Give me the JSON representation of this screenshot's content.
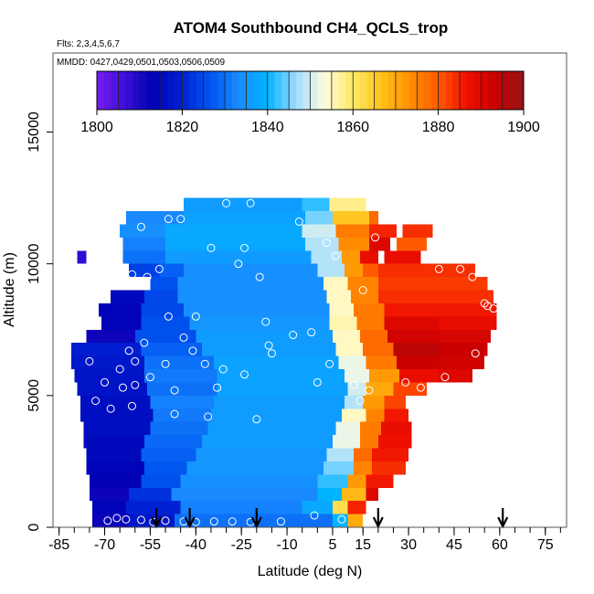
{
  "chart_data": {
    "type": "heatmap",
    "title": "ATOM4 Southbound CH4_QCLS_trop",
    "flights_text": "Flts: 2,3,4,5,6,7",
    "dates_text": "MMDD: 0427,0429,0501,0503,0506,0509",
    "xlabel": "Latitude (deg N)",
    "ylabel": "Altitude (m)",
    "xlim": [
      -87,
      82
    ],
    "ylim": [
      0,
      18000
    ],
    "x_ticks": [
      -85,
      -70,
      -55,
      -40,
      -25,
      -10,
      5,
      15,
      30,
      45,
      60,
      75
    ],
    "x_tick_labels": [
      "-85",
      "-70",
      "-55",
      "-40",
      "-25",
      "-10",
      "5",
      "15",
      "30",
      "45",
      "60",
      "75"
    ],
    "y_ticks": [
      0,
      5000,
      10000,
      15000
    ],
    "y_tick_labels": [
      "0",
      "5000",
      "10000",
      "15000"
    ],
    "colorbar": {
      "min": 1800,
      "max": 1900,
      "tick_values": [
        1800,
        1820,
        1840,
        1860,
        1880,
        1900
      ],
      "tick_labels": [
        "1800",
        "1820",
        "1840",
        "1860",
        "1880",
        "1900"
      ],
      "colors": [
        "#7a1bf0",
        "#3a0fd8",
        "#0000b4",
        "#0022d4",
        "#0055f0",
        "#1a8cff",
        "#00b4ff",
        "#9fdcff",
        "#fffde0",
        "#ffe866",
        "#ffc21a",
        "#ff9000",
        "#ff5a00",
        "#f01000",
        "#c80000",
        "#961414"
      ]
    },
    "rows": [
      {
        "alt": 250,
        "segments": [
          [
            -74,
            -62,
            1812
          ],
          [
            -62,
            -47,
            1818
          ],
          [
            -47,
            5,
            1830
          ],
          [
            5,
            10,
            1840
          ],
          [
            10,
            15,
            1870
          ]
        ]
      },
      {
        "alt": 750,
        "segments": [
          [
            -74,
            -63,
            1814
          ],
          [
            -63,
            -45,
            1820
          ],
          [
            -45,
            -5,
            1832
          ],
          [
            -5,
            5,
            1838
          ],
          [
            5,
            10,
            1862
          ],
          [
            10,
            16,
            1885
          ]
        ]
      },
      {
        "alt": 1250,
        "segments": [
          [
            -75,
            -62,
            1812
          ],
          [
            -62,
            -48,
            1822
          ],
          [
            -48,
            0,
            1833
          ],
          [
            0,
            8,
            1840
          ],
          [
            8,
            16,
            1868
          ],
          [
            16,
            20,
            1890
          ]
        ]
      },
      {
        "alt": 1750,
        "segments": [
          [
            -75,
            -58,
            1813
          ],
          [
            -58,
            -45,
            1826
          ],
          [
            -45,
            0,
            1834
          ],
          [
            0,
            10,
            1842
          ],
          [
            10,
            16,
            1872
          ],
          [
            16,
            25,
            1886
          ]
        ]
      },
      {
        "alt": 2250,
        "segments": [
          [
            -76,
            -57,
            1814
          ],
          [
            -57,
            -43,
            1827
          ],
          [
            -43,
            2,
            1835
          ],
          [
            2,
            12,
            1845
          ],
          [
            12,
            18,
            1875
          ],
          [
            18,
            29,
            1884
          ]
        ]
      },
      {
        "alt": 2750,
        "segments": [
          [
            -76,
            -58,
            1815
          ],
          [
            -58,
            -40,
            1828
          ],
          [
            -40,
            3,
            1835
          ],
          [
            3,
            12,
            1848
          ],
          [
            12,
            18,
            1878
          ],
          [
            18,
            30,
            1886
          ]
        ]
      },
      {
        "alt": 3250,
        "segments": [
          [
            -77,
            -57,
            1815
          ],
          [
            -57,
            -38,
            1829
          ],
          [
            -38,
            5,
            1836
          ],
          [
            5,
            14,
            1852
          ],
          [
            14,
            20,
            1876
          ],
          [
            20,
            31,
            1887
          ]
        ]
      },
      {
        "alt": 3750,
        "segments": [
          [
            -77,
            -55,
            1816
          ],
          [
            -55,
            -36,
            1830
          ],
          [
            -36,
            6,
            1836
          ],
          [
            6,
            14,
            1852
          ],
          [
            14,
            21,
            1876
          ],
          [
            21,
            31,
            1888
          ]
        ]
      },
      {
        "alt": 4250,
        "segments": [
          [
            -78,
            -54,
            1816
          ],
          [
            -54,
            -35,
            1831
          ],
          [
            -35,
            8,
            1836
          ],
          [
            8,
            16,
            1855
          ],
          [
            16,
            22,
            1875
          ],
          [
            22,
            30,
            1886
          ]
        ]
      },
      {
        "alt": 4750,
        "segments": [
          [
            -78,
            -55,
            1816
          ],
          [
            -55,
            -34,
            1832
          ],
          [
            -34,
            9,
            1836
          ],
          [
            9,
            15,
            1848
          ],
          [
            15,
            22,
            1872
          ],
          [
            22,
            29,
            1882
          ]
        ]
      },
      {
        "alt": 5250,
        "segments": [
          [
            -79,
            -56,
            1817
          ],
          [
            -56,
            -33,
            1830
          ],
          [
            -33,
            10,
            1837
          ],
          [
            10,
            16,
            1850
          ],
          [
            16,
            25,
            1870
          ],
          [
            25,
            36,
            1882
          ]
        ]
      },
      {
        "alt": 5750,
        "segments": [
          [
            -80,
            -57,
            1817
          ],
          [
            -57,
            -33,
            1831
          ],
          [
            -33,
            9,
            1837
          ],
          [
            9,
            17,
            1852
          ],
          [
            17,
            27,
            1872
          ],
          [
            27,
            40,
            1888
          ],
          [
            40,
            51,
            1890
          ]
        ]
      },
      {
        "alt": 6250,
        "segments": [
          [
            -81,
            -57,
            1818
          ],
          [
            -57,
            -34,
            1830
          ],
          [
            -34,
            7,
            1837
          ],
          [
            7,
            16,
            1852
          ],
          [
            16,
            26,
            1876
          ],
          [
            26,
            40,
            1893
          ],
          [
            40,
            55,
            1892
          ]
        ]
      },
      {
        "alt": 6750,
        "segments": [
          [
            -81,
            -58,
            1819
          ],
          [
            -58,
            -38,
            1828
          ],
          [
            -38,
            6,
            1836
          ],
          [
            6,
            15,
            1855
          ],
          [
            15,
            25,
            1878
          ],
          [
            25,
            40,
            1895
          ],
          [
            40,
            56,
            1893
          ]
        ]
      },
      {
        "alt": 7250,
        "segments": [
          [
            -76,
            -60,
            1812
          ],
          [
            -60,
            -40,
            1826
          ],
          [
            -40,
            5,
            1836
          ],
          [
            5,
            14,
            1855
          ],
          [
            14,
            23,
            1878
          ],
          [
            23,
            40,
            1892
          ],
          [
            40,
            57,
            1891
          ]
        ]
      },
      {
        "alt": 7750,
        "segments": [
          [
            -71,
            -58,
            1814
          ],
          [
            -58,
            -42,
            1826
          ],
          [
            -42,
            4,
            1835
          ],
          [
            4,
            13,
            1856
          ],
          [
            13,
            22,
            1876
          ],
          [
            22,
            40,
            1890
          ],
          [
            40,
            59,
            1888
          ]
        ]
      },
      {
        "alt": 8250,
        "segments": [
          [
            -72,
            -58,
            1814
          ],
          [
            -58,
            -44,
            1825
          ],
          [
            -44,
            4,
            1834
          ],
          [
            4,
            12,
            1855
          ],
          [
            12,
            22,
            1876
          ],
          [
            22,
            59,
            1886
          ]
        ]
      },
      {
        "alt": 8750,
        "segments": [
          [
            -68,
            -57,
            1815
          ],
          [
            -57,
            -46,
            1825
          ],
          [
            -46,
            3,
            1834
          ],
          [
            3,
            11,
            1855
          ],
          [
            11,
            20,
            1875
          ],
          [
            20,
            58,
            1884
          ]
        ]
      },
      {
        "alt": 9250,
        "segments": [
          [
            -55,
            -46,
            1826
          ],
          [
            -46,
            2,
            1834
          ],
          [
            2,
            10,
            1855
          ],
          [
            10,
            20,
            1875
          ],
          [
            20,
            56,
            1883
          ]
        ]
      },
      {
        "alt": 9750,
        "segments": [
          [
            -62,
            -52,
            1824
          ],
          [
            -52,
            -44,
            1828
          ],
          [
            -44,
            0,
            1834
          ],
          [
            0,
            9,
            1848
          ],
          [
            9,
            15,
            1872
          ],
          [
            15,
            20,
            1880
          ],
          [
            20,
            52,
            1884
          ]
        ]
      },
      {
        "alt": 10250,
        "segments": [
          [
            -79,
            -76,
            1808
          ],
          [
            -64,
            -50,
            1830
          ],
          [
            -50,
            -2,
            1836
          ],
          [
            -2,
            8,
            1848
          ],
          [
            8,
            14,
            1872
          ],
          [
            14,
            20,
            1888
          ],
          [
            22,
            34,
            1888
          ]
        ]
      },
      {
        "alt": 10750,
        "segments": [
          [
            -64,
            -50,
            1832
          ],
          [
            -50,
            -4,
            1838
          ],
          [
            -4,
            7,
            1848
          ],
          [
            7,
            17,
            1874
          ],
          [
            17,
            24,
            1890
          ],
          [
            26,
            36,
            1880
          ]
        ]
      },
      {
        "alt": 11250,
        "segments": [
          [
            -65,
            -50,
            1834
          ],
          [
            -50,
            -5,
            1838
          ],
          [
            -5,
            6,
            1850
          ],
          [
            6,
            17,
            1876
          ],
          [
            17,
            26,
            1885
          ],
          [
            28,
            38,
            1884
          ]
        ]
      },
      {
        "alt": 11750,
        "segments": [
          [
            -63,
            -44,
            1833
          ],
          [
            -44,
            -4,
            1837
          ],
          [
            -4,
            5,
            1845
          ],
          [
            5,
            17,
            1866
          ],
          [
            17,
            20,
            1878
          ]
        ]
      },
      {
        "alt": 12250,
        "segments": [
          [
            -44,
            -5,
            1836
          ],
          [
            -5,
            4,
            1842
          ],
          [
            4,
            16,
            1858
          ]
        ]
      }
    ],
    "observations": [
      {
        "lat": -77,
        "alt": 300
      },
      {
        "lat": -69,
        "alt": 250
      },
      {
        "lat": -66,
        "alt": 350
      },
      {
        "lat": -63,
        "alt": 300
      },
      {
        "lat": -58,
        "alt": 280
      },
      {
        "lat": -54,
        "alt": 200
      },
      {
        "lat": -50,
        "alt": 250
      },
      {
        "lat": -44,
        "alt": 220
      },
      {
        "lat": -40,
        "alt": 200
      },
      {
        "lat": -34,
        "alt": 220
      },
      {
        "lat": -28,
        "alt": 220
      },
      {
        "lat": -22,
        "alt": 200
      },
      {
        "lat": -12,
        "alt": 220
      },
      {
        "lat": -1,
        "alt": 450
      },
      {
        "lat": 8,
        "alt": 300
      },
      {
        "lat": -73,
        "alt": 4800
      },
      {
        "lat": -68,
        "alt": 4500
      },
      {
        "lat": -61,
        "alt": 4600
      },
      {
        "lat": -47,
        "alt": 4300
      },
      {
        "lat": -36,
        "alt": 4200
      },
      {
        "lat": -20,
        "alt": 4100
      },
      {
        "lat": -70,
        "alt": 5500
      },
      {
        "lat": -64,
        "alt": 5300
      },
      {
        "lat": -60,
        "alt": 5400
      },
      {
        "lat": -55,
        "alt": 5700
      },
      {
        "lat": -47,
        "alt": 5200
      },
      {
        "lat": -41,
        "alt": 6700
      },
      {
        "lat": -37,
        "alt": 6200
      },
      {
        "lat": -31,
        "alt": 6000
      },
      {
        "lat": -24,
        "alt": 5800
      },
      {
        "lat": -16,
        "alt": 6900
      },
      {
        "lat": -8,
        "alt": 7300
      },
      {
        "lat": 0,
        "alt": 5500
      },
      {
        "lat": 4,
        "alt": 6200
      },
      {
        "lat": 12,
        "alt": 5400
      },
      {
        "lat": 14,
        "alt": 4800
      },
      {
        "lat": 17,
        "alt": 5200
      },
      {
        "lat": 29,
        "alt": 5500
      },
      {
        "lat": 34,
        "alt": 5300
      },
      {
        "lat": 42,
        "alt": 5700
      },
      {
        "lat": 46,
        "alt": 5100
      },
      {
        "lat": 52,
        "alt": 6600
      },
      {
        "lat": -75,
        "alt": 6300
      },
      {
        "lat": -65,
        "alt": 6000
      },
      {
        "lat": -62,
        "alt": 6700
      },
      {
        "lat": -57,
        "alt": 7000
      },
      {
        "lat": -50,
        "alt": 6200
      },
      {
        "lat": -44,
        "alt": 7200
      },
      {
        "lat": -49,
        "alt": 8000
      },
      {
        "lat": -40,
        "alt": 8000
      },
      {
        "lat": -17,
        "alt": 7800
      },
      {
        "lat": -2,
        "alt": 7400
      },
      {
        "lat": -71,
        "alt": 10900
      },
      {
        "lat": -66,
        "alt": 9800
      },
      {
        "lat": -61,
        "alt": 9600
      },
      {
        "lat": -56,
        "alt": 9500
      },
      {
        "lat": -52,
        "alt": 9800
      },
      {
        "lat": -35,
        "alt": 10600
      },
      {
        "lat": -26,
        "alt": 10000
      },
      {
        "lat": -24,
        "alt": 10600
      },
      {
        "lat": -19,
        "alt": 9500
      },
      {
        "lat": -58,
        "alt": 11400
      },
      {
        "lat": -49,
        "alt": 11700
      },
      {
        "lat": -45,
        "alt": 11700
      },
      {
        "lat": -30,
        "alt": 12300
      },
      {
        "lat": -22,
        "alt": 12300
      },
      {
        "lat": -6,
        "alt": 11600
      },
      {
        "lat": 3,
        "alt": 10800
      },
      {
        "lat": 6,
        "alt": 10300
      },
      {
        "lat": 15,
        "alt": 9000
      },
      {
        "lat": 19,
        "alt": 11000
      },
      {
        "lat": 22,
        "alt": 11700
      },
      {
        "lat": 40,
        "alt": 9800
      },
      {
        "lat": 47,
        "alt": 9800
      },
      {
        "lat": 51,
        "alt": 9500
      },
      {
        "lat": 55,
        "alt": 8500
      },
      {
        "lat": 56,
        "alt": 8400
      },
      {
        "lat": 58,
        "alt": 8300
      },
      {
        "lat": -60,
        "alt": 6300
      },
      {
        "lat": -33,
        "alt": 5300
      },
      {
        "lat": -15,
        "alt": 6600
      }
    ],
    "arrows_lat": [
      -53,
      -42,
      -20,
      20,
      61
    ]
  }
}
